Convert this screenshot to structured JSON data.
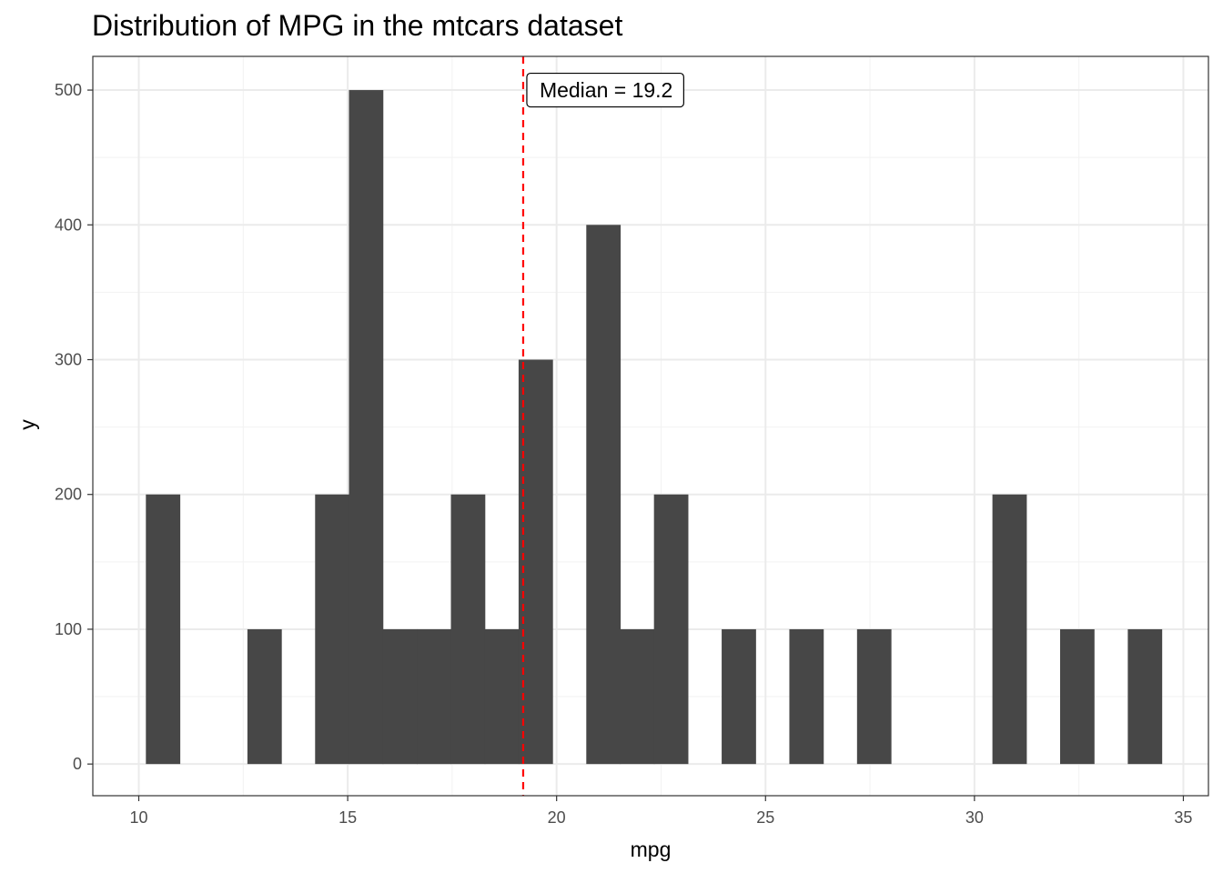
{
  "chart_data": {
    "type": "bar",
    "subtype": "histogram",
    "title": "Distribution of MPG in the mtcars dataset",
    "xlabel": "mpg",
    "ylabel": "y",
    "xlim": [
      8.9,
      35.6
    ],
    "ylim": [
      -23.5,
      525
    ],
    "x_ticks": [
      10,
      15,
      20,
      25,
      30,
      35
    ],
    "y_ticks": [
      0,
      100,
      200,
      300,
      400,
      500
    ],
    "x_tick_labels": [
      "10",
      "15",
      "20",
      "25",
      "30",
      "35"
    ],
    "y_tick_labels": [
      "0",
      "100",
      "200",
      "300",
      "400",
      "500"
    ],
    "grid": true,
    "bar_color": "#474747",
    "bins": [
      {
        "x_start": 10.17,
        "x_end": 10.98,
        "value": 200
      },
      {
        "x_start": 12.6,
        "x_end": 13.41,
        "value": 100
      },
      {
        "x_start": 14.22,
        "x_end": 15.03,
        "value": 200
      },
      {
        "x_start": 15.03,
        "x_end": 15.84,
        "value": 500
      },
      {
        "x_start": 15.84,
        "x_end": 16.66,
        "value": 100
      },
      {
        "x_start": 16.66,
        "x_end": 17.47,
        "value": 100
      },
      {
        "x_start": 17.47,
        "x_end": 18.28,
        "value": 200
      },
      {
        "x_start": 18.28,
        "x_end": 19.09,
        "value": 100
      },
      {
        "x_start": 19.09,
        "x_end": 19.9,
        "value": 300
      },
      {
        "x_start": 20.71,
        "x_end": 21.52,
        "value": 400
      },
      {
        "x_start": 21.52,
        "x_end": 22.33,
        "value": 100
      },
      {
        "x_start": 22.33,
        "x_end": 23.14,
        "value": 200
      },
      {
        "x_start": 23.95,
        "x_end": 24.76,
        "value": 100
      },
      {
        "x_start": 25.57,
        "x_end": 26.38,
        "value": 100
      },
      {
        "x_start": 27.19,
        "x_end": 28.0,
        "value": 100
      },
      {
        "x_start": 30.43,
        "x_end": 31.24,
        "value": 200
      },
      {
        "x_start": 32.05,
        "x_end": 32.86,
        "value": 100
      },
      {
        "x_start": 33.67,
        "x_end": 34.48,
        "value": 100
      }
    ],
    "reference_line": {
      "x": 19.2,
      "color": "#ff0000",
      "style": "dashed"
    },
    "annotation": {
      "text": "Median = 19.2",
      "x": 19.2,
      "y": 500
    }
  }
}
